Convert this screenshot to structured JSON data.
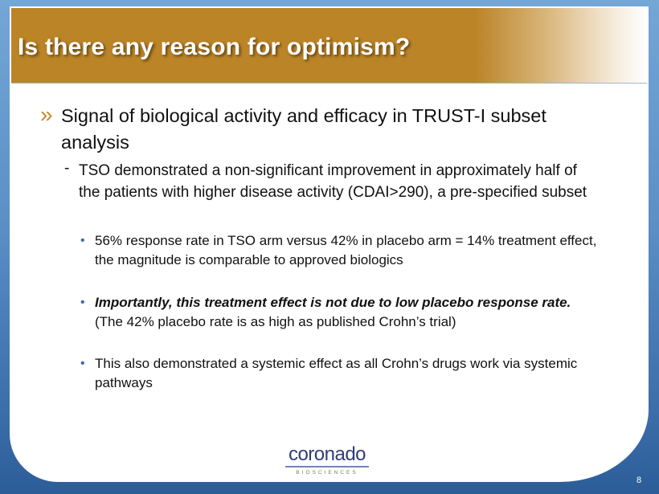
{
  "slide": {
    "title": "Is there any reason for optimism?",
    "page_number": "8",
    "logo": {
      "name": "coronado",
      "sub": "BIOSCIENCES"
    },
    "bullets": {
      "l1_marker": "»",
      "l1_text": "Signal of biological activity and efficacy in TRUST-I subset analysis",
      "l2_marker": "-",
      "l2_text": "TSO demonstrated a non-significant improvement in approximately half of the patients with higher disease activity (CDAI>290), a pre-specified subset",
      "l3_marker": "•",
      "l3": [
        {
          "text": "56% response rate in TSO arm versus 42% in placebo arm = 14% treatment effect, the magnitude is comparable to approved biologics"
        },
        {
          "bold": "Importantly, this treatment effect is not due to low placebo response rate.",
          "text": " (The 42% placebo rate is as high as published Crohn’s trial)"
        },
        {
          "text": "This also demonstrated a systemic effect as all Crohn’s drugs work via systemic pathways"
        }
      ]
    }
  }
}
